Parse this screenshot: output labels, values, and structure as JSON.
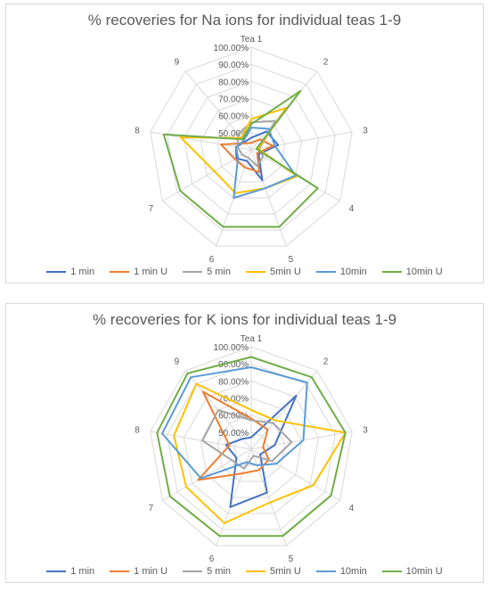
{
  "chart_data": [
    {
      "type": "radar",
      "title": "% recoveries for Na ions for individual teas 1-9",
      "categories": [
        "Tea 1",
        "2",
        "3",
        "4",
        "5",
        "6",
        "7",
        "8",
        "9"
      ],
      "rlim": [
        40,
        100
      ],
      "ticks": [
        "50.00%",
        "60.00%",
        "70.00%",
        "80.00%",
        "90.00%",
        "100.00%"
      ],
      "grid": true,
      "legend": "bottom",
      "series": [
        {
          "name": "1 min",
          "color": "#4472c4",
          "values": [
            47,
            54,
            56,
            45,
            59,
            47,
            50,
            49,
            46
          ]
        },
        {
          "name": "1 min U",
          "color": "#ed7d31",
          "values": [
            44,
            48,
            53,
            44,
            54,
            51,
            51,
            58,
            45
          ]
        },
        {
          "name": "5 min",
          "color": "#a5a5a5",
          "values": [
            56,
            62,
            45,
            48,
            50,
            45,
            46,
            48,
            52
          ]
        },
        {
          "name": "5min U",
          "color": "#ffc000",
          "values": [
            58,
            72,
            44,
            71,
            64,
            67,
            65,
            82,
            49
          ]
        },
        {
          "name": "10min",
          "color": "#5b9bd5",
          "values": [
            53,
            56,
            54,
            70,
            64,
            70,
            49,
            49,
            47
          ]
        },
        {
          "name": "10min U",
          "color": "#70ad47",
          "values": [
            55,
            85,
            43,
            85,
            88,
            88,
            88,
            92,
            48
          ]
        }
      ]
    },
    {
      "type": "radar",
      "title": "% recoveries for K ions for individual teas 1-9",
      "categories": [
        "Tea 1",
        "2",
        "3",
        "4",
        "5",
        "6",
        "7",
        "8",
        "9"
      ],
      "rlim": [
        40,
        100
      ],
      "ticks": [
        "50.00%",
        "60.00%",
        "70.00%",
        "80.00%",
        "90.00%",
        "100.00%"
      ],
      "grid": true,
      "legend": "bottom",
      "series": [
        {
          "name": "1 min",
          "color": "#4472c4",
          "values": [
            47,
            81,
            54,
            46,
            67,
            76,
            50,
            55,
            48
          ]
        },
        {
          "name": "1 min U",
          "color": "#ed7d31",
          "values": [
            58,
            55,
            47,
            52,
            53,
            55,
            76,
            53,
            84
          ]
        },
        {
          "name": "5 min",
          "color": "#a5a5a5",
          "values": [
            57,
            60,
            64,
            54,
            44,
            52,
            53,
            69,
            70
          ]
        },
        {
          "name": "5min U",
          "color": "#ffc000",
          "values": [
            63,
            62,
            96,
            82,
            73,
            86,
            84,
            86,
            90
          ]
        },
        {
          "name": "10min",
          "color": "#5b9bd5",
          "values": [
            88,
            91,
            71,
            57,
            50,
            48,
            74,
            93,
            95
          ]
        },
        {
          "name": "10min U",
          "color": "#70ad47",
          "values": [
            94,
            95,
            96,
            94,
            94,
            94,
            95,
            96,
            98
          ]
        }
      ]
    }
  ]
}
